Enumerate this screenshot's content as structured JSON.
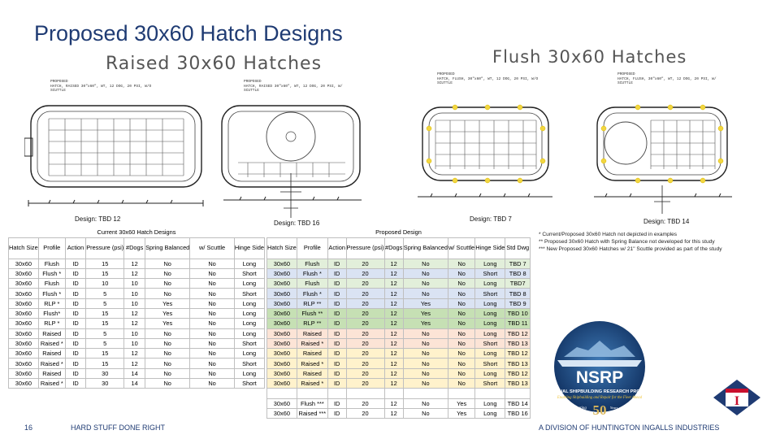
{
  "title": "Proposed 30x60 Hatch Designs",
  "raised_header": "Raised 30x60 Hatches",
  "flush_header": "Flush 30x60 Hatches",
  "drawing_notes": {
    "d1": [
      "PROPOSED",
      "HATCH, RAISED 30\"x60\", WT, 12 DOG, 20 PSI, W/O",
      "SCUTTLE"
    ],
    "d2": [
      "PROPOSED",
      "HATCH, RAISED 30\"x60\", WT, 12 DOG, 20 PSI, W/",
      "SCUTTLE"
    ],
    "d3": [
      "PROPOSED",
      "HATCH, FLUSH, 30\"x60\", WT, 12 DOG, 20 PSI, W/O",
      "SCUTTLE"
    ],
    "d4": [
      "PROPOSED",
      "HATCH, FLUSH, 30\"x60\", WT, 12 DOG, 20 PSI, W/",
      "SCUTTLE"
    ]
  },
  "design_labels": [
    "Design: TBD 12",
    "Design: TBD 16",
    "Design: TBD 7",
    "Design: TBD 14"
  ],
  "current_table": {
    "group_title": "Current 30x60 Hatch Designs",
    "headers": [
      "Hatch Size",
      "Profile",
      "Action",
      "Pressure (psi)",
      "#Dogs",
      "Spring Balanced",
      "w/ Scuttle",
      "Hinge Side"
    ],
    "rows": [
      [
        "30x60",
        "Flush",
        "ID",
        "15",
        "12",
        "No",
        "No",
        "Long"
      ],
      [
        "30x60",
        "Flush *",
        "ID",
        "15",
        "12",
        "No",
        "No",
        "Short"
      ],
      [
        "30x60",
        "Flush",
        "ID",
        "10",
        "10",
        "No",
        "No",
        "Long"
      ],
      [
        "30x60",
        "Flush *",
        "ID",
        "5",
        "10",
        "No",
        "No",
        "Short"
      ],
      [
        "30x60",
        "RLP *",
        "ID",
        "5",
        "10",
        "Yes",
        "No",
        "Long"
      ],
      [
        "30x60",
        "Flush*",
        "ID",
        "15",
        "12",
        "Yes",
        "No",
        "Long"
      ],
      [
        "30x60",
        "RLP *",
        "ID",
        "15",
        "12",
        "Yes",
        "No",
        "Long"
      ],
      [
        "30x60",
        "Raised",
        "ID",
        "5",
        "10",
        "No",
        "No",
        "Long"
      ],
      [
        "30x60",
        "Raised *",
        "ID",
        "5",
        "10",
        "No",
        "No",
        "Short"
      ],
      [
        "30x60",
        "Raised",
        "ID",
        "15",
        "12",
        "No",
        "No",
        "Long"
      ],
      [
        "30x60",
        "Raised *",
        "ID",
        "15",
        "12",
        "No",
        "No",
        "Short"
      ],
      [
        "30x60",
        "Raised",
        "ID",
        "30",
        "14",
        "No",
        "No",
        "Long"
      ],
      [
        "30x60",
        "Raised *",
        "ID",
        "30",
        "14",
        "No",
        "No",
        "Short"
      ]
    ]
  },
  "proposed_table": {
    "group_title": "Proposed Design",
    "headers": [
      "Hatch Size",
      "Profile",
      "Action",
      "Pressure (psi)",
      "#Dogs",
      "Spring Balanced",
      "w/ Scuttle",
      "Hinge Side",
      "Std Dwg"
    ],
    "rows": [
      [
        "30x60",
        "Flush",
        "ID",
        "20",
        "12",
        "No",
        "No",
        "Long",
        "TBD 7"
      ],
      [
        "30x60",
        "Flush *",
        "ID",
        "20",
        "12",
        "No",
        "No",
        "Short",
        "TBD 8"
      ],
      [
        "30x60",
        "Flush",
        "ID",
        "20",
        "12",
        "No",
        "No",
        "Long",
        "TBD7"
      ],
      [
        "30x60",
        "Flush *",
        "ID",
        "20",
        "12",
        "No",
        "No",
        "Short",
        "TBD 8"
      ],
      [
        "30x60",
        "RLP **",
        "ID",
        "20",
        "12",
        "Yes",
        "No",
        "Long",
        "TBD 9"
      ],
      [
        "30x60",
        "Flush **",
        "ID",
        "20",
        "12",
        "Yes",
        "No",
        "Long",
        "TBD 10"
      ],
      [
        "30x60",
        "RLP **",
        "ID",
        "20",
        "12",
        "Yes",
        "No",
        "Long",
        "TBD 11"
      ],
      [
        "30x60",
        "Raised",
        "ID",
        "20",
        "12",
        "No",
        "No",
        "Long",
        "TBD 12"
      ],
      [
        "30x60",
        "Raised *",
        "ID",
        "20",
        "12",
        "No",
        "No",
        "Short",
        "TBD 13"
      ],
      [
        "30x60",
        "Raised",
        "ID",
        "20",
        "12",
        "No",
        "No",
        "Long",
        "TBD 12"
      ],
      [
        "30x60",
        "Raised *",
        "ID",
        "20",
        "12",
        "No",
        "No",
        "Short",
        "TBD 13"
      ],
      [
        "30x60",
        "Raised",
        "ID",
        "20",
        "12",
        "No",
        "No",
        "Long",
        "TBD 12"
      ],
      [
        "30x60",
        "Raised *",
        "ID",
        "20",
        "12",
        "No",
        "No",
        "Short",
        "TBD 13"
      ],
      [
        "",
        "",
        "",
        "",
        "",
        "",
        "",
        "",
        ""
      ],
      [
        "30x60",
        "Flush ***",
        "ID",
        "20",
        "12",
        "No",
        "Yes",
        "Long",
        "TBD 14"
      ],
      [
        "30x60",
        "Raised ***",
        "ID",
        "20",
        "12",
        "No",
        "Yes",
        "Long",
        "TBD 16"
      ]
    ],
    "row_colors": [
      "#e2efda",
      "#dae3f3",
      "#e2efda",
      "#dae3f3",
      "#dae3f3",
      "#c6e0b4",
      "#c6e0b4",
      "#fce4d6",
      "#fce4d6",
      "#fff2cc",
      "#fff2cc",
      "#fff2cc",
      "#fff2cc",
      "#ffffff",
      "#ffffff",
      "#ffffff"
    ]
  },
  "notes": [
    "* Current/Proposed 30x60 Hatch not depicted in examples",
    "** Proposed 30x60 Hatch with Spring Balance not developed for this study",
    "*** New Proposed 30x60 Hatches w/ 21\" Scuttle provided as part of the study"
  ],
  "logo": {
    "name": "NSRP",
    "line1": "NATIONAL SHIPBUILDING RESEARCH PROGRAM",
    "line2": "Enabling Shipbuilding and Repair for the Fleet Ahead",
    "celebrating": "Celebrating",
    "years": "50",
    "years_sub": "Years of Innovation"
  },
  "footer": {
    "page_number": "16",
    "left": "HARD STUFF DONE RIGHT",
    "right": "A DIVISION OF HUNTINGTON INGALLS INDUSTRIES"
  }
}
